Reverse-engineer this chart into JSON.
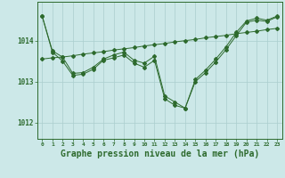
{
  "title": "Graphe pression niveau de la mer (hPa)",
  "background_color": "#cce8e8",
  "grid_color": "#aacece",
  "line_color": "#2d6a2d",
  "ylabel_ticks": [
    1012,
    1013,
    1014
  ],
  "xlim": [
    -0.5,
    23.5
  ],
  "ylim": [
    1011.6,
    1014.95
  ],
  "xlabel_fontsize": 7,
  "series1_x": [
    0,
    1,
    2,
    3,
    4,
    5,
    6,
    7,
    8,
    9,
    10,
    11,
    12,
    13,
    14,
    15,
    16,
    17,
    18,
    19,
    20,
    21,
    22,
    23
  ],
  "series1_y": [
    1014.6,
    1013.75,
    1013.6,
    1013.2,
    1013.22,
    1013.35,
    1013.55,
    1013.65,
    1013.72,
    1013.52,
    1013.45,
    1013.62,
    1012.65,
    1012.5,
    1012.35,
    1013.05,
    1013.28,
    1013.55,
    1013.85,
    1014.2,
    1014.48,
    1014.55,
    1014.5,
    1014.6
  ],
  "series2_x": [
    0,
    1,
    2,
    3,
    4,
    5,
    6,
    7,
    8,
    9,
    10,
    11,
    12,
    13,
    14,
    15,
    16,
    17,
    18,
    19,
    20,
    21,
    22,
    23
  ],
  "series2_y": [
    1013.55,
    1013.58,
    1013.6,
    1013.63,
    1013.67,
    1013.7,
    1013.73,
    1013.77,
    1013.8,
    1013.83,
    1013.87,
    1013.9,
    1013.93,
    1013.97,
    1014.0,
    1014.03,
    1014.07,
    1014.1,
    1014.13,
    1014.17,
    1014.2,
    1014.23,
    1014.27,
    1014.3
  ],
  "series3_x": [
    0,
    1,
    2,
    3,
    4,
    5,
    6,
    7,
    8,
    9,
    10,
    11,
    12,
    13,
    14,
    15,
    16,
    17,
    18,
    19,
    20,
    21,
    22,
    23
  ],
  "series3_y": [
    1014.6,
    1013.72,
    1013.5,
    1013.15,
    1013.18,
    1013.3,
    1013.52,
    1013.58,
    1013.65,
    1013.45,
    1013.35,
    1013.52,
    1012.58,
    1012.42,
    1012.35,
    1013.0,
    1013.22,
    1013.48,
    1013.78,
    1014.12,
    1014.45,
    1014.5,
    1014.47,
    1014.58
  ],
  "markersize": 2.0
}
